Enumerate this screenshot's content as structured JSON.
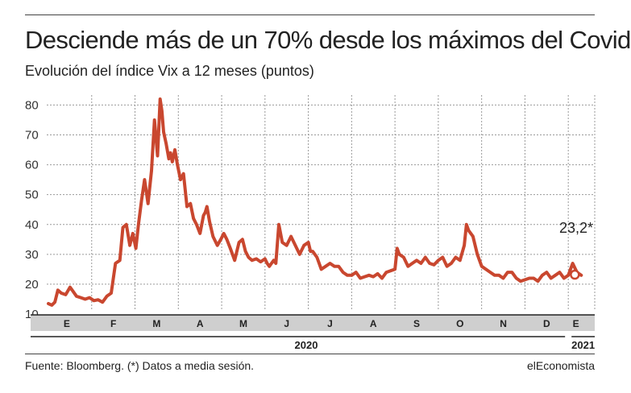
{
  "header": {
    "title": "Desciende más de un 70% desde los máximos del Covid",
    "subtitle": "Evolución del índice Vix a 12 meses (puntos)"
  },
  "footer": {
    "source": "Fuente: Bloomberg. (*) Datos a media sesión.",
    "brand": "elEconomista"
  },
  "chart_data": {
    "type": "line",
    "title": "Desciende más de un 70% desde los máximos del Covid",
    "subtitle": "Evolución del índice Vix a 12 meses (puntos)",
    "xlabel": "",
    "ylabel": "",
    "ylim": [
      10,
      85
    ],
    "yticks": [
      10,
      20,
      30,
      40,
      50,
      60,
      70,
      80
    ],
    "grid": true,
    "line_color": "#c9472f",
    "xlim": [
      0,
      12.35
    ],
    "months": [
      {
        "label": "E",
        "start": 0,
        "end": 1
      },
      {
        "label": "F",
        "start": 1,
        "end": 2
      },
      {
        "label": "M",
        "start": 2,
        "end": 3
      },
      {
        "label": "A",
        "start": 3,
        "end": 4
      },
      {
        "label": "M",
        "start": 4,
        "end": 5
      },
      {
        "label": "J",
        "start": 5,
        "end": 6
      },
      {
        "label": "J",
        "start": 6,
        "end": 7
      },
      {
        "label": "A",
        "start": 7,
        "end": 8
      },
      {
        "label": "S",
        "start": 8,
        "end": 9
      },
      {
        "label": "O",
        "start": 9,
        "end": 10
      },
      {
        "label": "N",
        "start": 10,
        "end": 11
      },
      {
        "label": "D",
        "start": 11,
        "end": 12
      },
      {
        "label": "E",
        "start": 12,
        "end": 12.35
      }
    ],
    "years": [
      {
        "label": "2020",
        "start": 0,
        "end": 12
      },
      {
        "label": "2021",
        "start": 12,
        "end": 12.35
      }
    ],
    "series": [
      {
        "x": [
          0.0,
          0.08,
          0.15,
          0.22,
          0.3,
          0.4,
          0.5,
          0.55,
          0.65,
          0.75,
          0.85,
          0.95,
          1.05,
          1.15,
          1.25,
          1.35,
          1.45,
          1.55,
          1.65,
          1.72,
          1.8,
          1.88,
          1.95,
          2.02,
          2.08,
          2.15,
          2.22,
          2.3,
          2.38,
          2.45,
          2.52,
          2.58,
          2.62,
          2.66,
          2.72,
          2.78,
          2.82,
          2.86,
          2.92,
          2.98,
          3.05,
          3.12,
          3.2,
          3.28,
          3.35,
          3.42,
          3.5,
          3.58,
          3.62,
          3.66,
          3.72,
          3.8,
          3.9,
          3.98,
          4.05,
          4.12,
          4.2,
          4.3,
          4.4,
          4.48,
          4.55,
          4.62,
          4.7,
          4.8,
          4.9,
          5.0,
          5.05,
          5.1,
          5.15,
          5.2,
          5.25,
          5.32,
          5.4,
          5.5,
          5.6,
          5.7,
          5.8,
          5.9,
          6.0,
          6.05,
          6.1,
          6.2,
          6.3,
          6.4,
          6.5,
          6.6,
          6.7,
          6.8,
          6.9,
          7.0,
          7.1,
          7.2,
          7.3,
          7.4,
          7.5,
          7.6,
          7.7,
          7.8,
          7.9,
          8.0,
          8.05,
          8.1,
          8.2,
          8.3,
          8.4,
          8.5,
          8.6,
          8.7,
          8.8,
          8.9,
          9.0,
          9.1,
          9.2,
          9.3,
          9.4,
          9.5,
          9.6,
          9.65,
          9.7,
          9.8,
          9.9,
          10.0,
          10.1,
          10.2,
          10.3,
          10.4,
          10.5,
          10.6,
          10.7,
          10.8,
          10.9,
          11.0,
          11.1,
          11.2,
          11.3,
          11.4,
          11.5,
          11.6,
          11.7,
          11.8,
          11.9,
          12.0,
          12.1,
          12.2,
          12.3
        ],
        "y": [
          13.5,
          13,
          14,
          18,
          17,
          16.5,
          19,
          18,
          16,
          15.5,
          15,
          15.5,
          14.5,
          14.8,
          14,
          16,
          17,
          27,
          28,
          39,
          40,
          33,
          37,
          32,
          40,
          48,
          55,
          47,
          58,
          75,
          63,
          82,
          78,
          71,
          67,
          62,
          64,
          61,
          65,
          60,
          55,
          57,
          46,
          47,
          42,
          40,
          37,
          43,
          44,
          46,
          41,
          36,
          33,
          35,
          37,
          35,
          32,
          28,
          34,
          35,
          31,
          29,
          28,
          28.5,
          27.5,
          28.5,
          27,
          26,
          27,
          28,
          27,
          40,
          34,
          33,
          36,
          33,
          30,
          33,
          34,
          31,
          31,
          29,
          25,
          26,
          27,
          26,
          26,
          24,
          23,
          23,
          24,
          22,
          22.5,
          23,
          22.5,
          23.5,
          22,
          24,
          24.5,
          25,
          32,
          30,
          29,
          26,
          27,
          28,
          27,
          29,
          27,
          26.5,
          28,
          29,
          26,
          27,
          29,
          28,
          33,
          40,
          38,
          36,
          30,
          26,
          25,
          24,
          23,
          23,
          22,
          24,
          24,
          22,
          21,
          21.5,
          22,
          22,
          21,
          23,
          24,
          22,
          23,
          24,
          22,
          23,
          27,
          24,
          23
        ],
        "color": "#c9472f"
      }
    ],
    "endpoint": {
      "x": 12.3,
      "y": 23.2,
      "label": "23,2*"
    }
  }
}
